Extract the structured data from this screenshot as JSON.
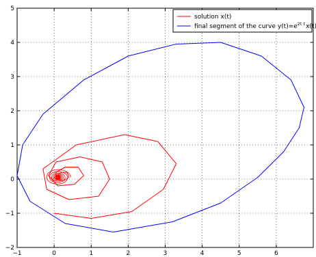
{
  "chart_data": {
    "type": "line",
    "xlim": [
      -1,
      7
    ],
    "ylim": [
      -2,
      5
    ],
    "x_ticks": [
      "−1",
      "0",
      "1",
      "2",
      "3",
      "4",
      "5",
      "6"
    ],
    "y_ticks": [
      "−2",
      "−1",
      "0",
      "1",
      "2",
      "3",
      "4",
      "5"
    ],
    "grid": true,
    "legend_position": "top-right",
    "series": [
      {
        "name": "solution x(t)",
        "color": "#ff0000",
        "description": "spiral decaying toward the origin",
        "start": [
          0.0,
          -1.0
        ],
        "spiral_center": [
          0.1,
          0.05
        ],
        "outer_loop_extent": {
          "x": [
            -0.3,
            3.3
          ],
          "y": [
            -1.15,
            1.3
          ]
        },
        "points": [
          [
            0.0,
            -1.0
          ],
          [
            1.0,
            -1.15
          ],
          [
            2.1,
            -0.95
          ],
          [
            2.95,
            -0.3
          ],
          [
            3.3,
            0.45
          ],
          [
            2.8,
            1.1
          ],
          [
            1.9,
            1.3
          ],
          [
            0.6,
            1.0
          ],
          [
            -0.3,
            0.3
          ],
          [
            -0.2,
            -0.3
          ],
          [
            0.4,
            -0.6
          ],
          [
            1.2,
            -0.5
          ],
          [
            1.5,
            0.0
          ],
          [
            1.3,
            0.5
          ],
          [
            0.7,
            0.65
          ],
          [
            0.05,
            0.5
          ],
          [
            -0.15,
            0.1
          ],
          [
            0.1,
            -0.2
          ],
          [
            0.55,
            -0.15
          ],
          [
            0.8,
            0.1
          ],
          [
            0.65,
            0.35
          ],
          [
            0.3,
            0.35
          ],
          [
            0.05,
            0.2
          ],
          [
            0.05,
            0.0
          ],
          [
            0.25,
            -0.05
          ],
          [
            0.4,
            0.05
          ],
          [
            0.35,
            0.2
          ],
          [
            0.2,
            0.2
          ],
          [
            0.1,
            0.1
          ],
          [
            0.15,
            0.02
          ],
          [
            0.1,
            0.05
          ]
        ]
      },
      {
        "name": "final segment of the curve  y(t)=e^{2t} x(t)",
        "color": "#0000ff",
        "description": "large ellipse-like loop",
        "extent": {
          "x": [
            -1.0,
            6.75
          ],
          "y": [
            -1.55,
            4.0
          ]
        },
        "points": [
          [
            6.62,
            1.5
          ],
          [
            6.2,
            0.8
          ],
          [
            5.5,
            0.05
          ],
          [
            4.5,
            -0.7
          ],
          [
            3.2,
            -1.25
          ],
          [
            1.6,
            -1.55
          ],
          [
            0.3,
            -1.3
          ],
          [
            -0.65,
            -0.65
          ],
          [
            -1.0,
            0.1
          ],
          [
            -0.85,
            1.0
          ],
          [
            -0.3,
            1.9
          ],
          [
            0.8,
            2.9
          ],
          [
            2.0,
            3.6
          ],
          [
            3.3,
            3.95
          ],
          [
            4.5,
            4.0
          ],
          [
            5.6,
            3.6
          ],
          [
            6.4,
            2.9
          ],
          [
            6.75,
            2.1
          ],
          [
            6.62,
            1.5
          ]
        ]
      }
    ],
    "legend": {
      "entries": [
        {
          "text": "solution x(t)",
          "color": "#ff0000"
        },
        {
          "text_main": "final segment of the curve  y(t)=e",
          "text_sup": "2t t",
          "text_tail": "x(t)",
          "color": "#0000ff"
        }
      ]
    }
  }
}
